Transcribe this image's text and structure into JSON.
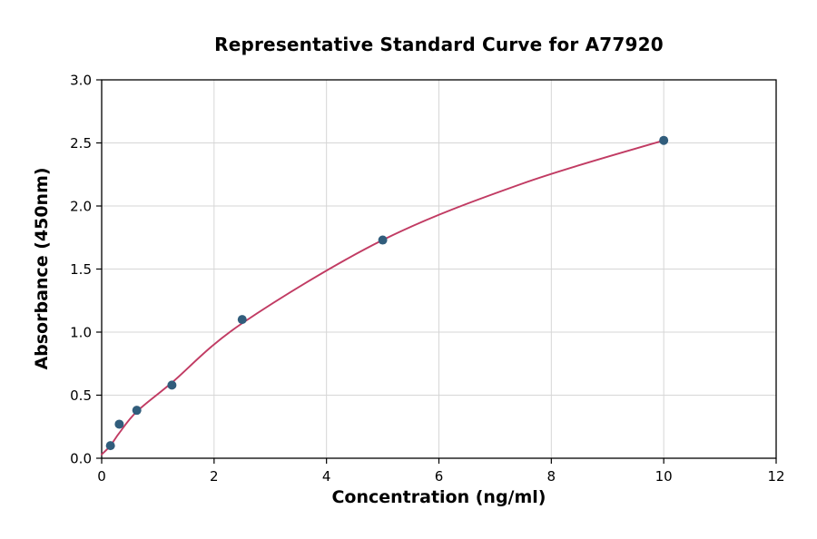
{
  "figure": {
    "background": "#ffffff"
  },
  "chart_data": {
    "type": "scatter",
    "title": "Representative Standard Curve for A77920",
    "xlabel": "Concentration (ng/ml)",
    "ylabel": "Absorbance (450nm)",
    "xlim": [
      0,
      12
    ],
    "ylim": [
      0,
      3
    ],
    "x_ticks": [
      0,
      2,
      4,
      6,
      8,
      10,
      12
    ],
    "y_ticks": [
      0,
      0.5,
      1,
      1.5,
      2,
      2.5,
      3
    ],
    "y_tick_decimals": 1,
    "grid": true,
    "grid_color": "#d6d6d6",
    "frame_color": "#000000",
    "tick_color": "#000000",
    "legend": "none",
    "points": {
      "x": [
        0.156,
        0.313,
        0.625,
        1.25,
        2.5,
        5,
        10
      ],
      "y": [
        0.1,
        0.27,
        0.38,
        0.58,
        1.1,
        1.73,
        2.52
      ]
    },
    "point_color": "#315d7c",
    "fit_curve": {
      "x": [
        0,
        0.156,
        0.313,
        0.625,
        1.25,
        2.5,
        5,
        7.5,
        10
      ],
      "y": [
        0.03,
        0.1,
        0.2,
        0.37,
        0.6,
        1.07,
        1.73,
        2.18,
        2.52
      ]
    },
    "curve_color": "#c13b63"
  }
}
